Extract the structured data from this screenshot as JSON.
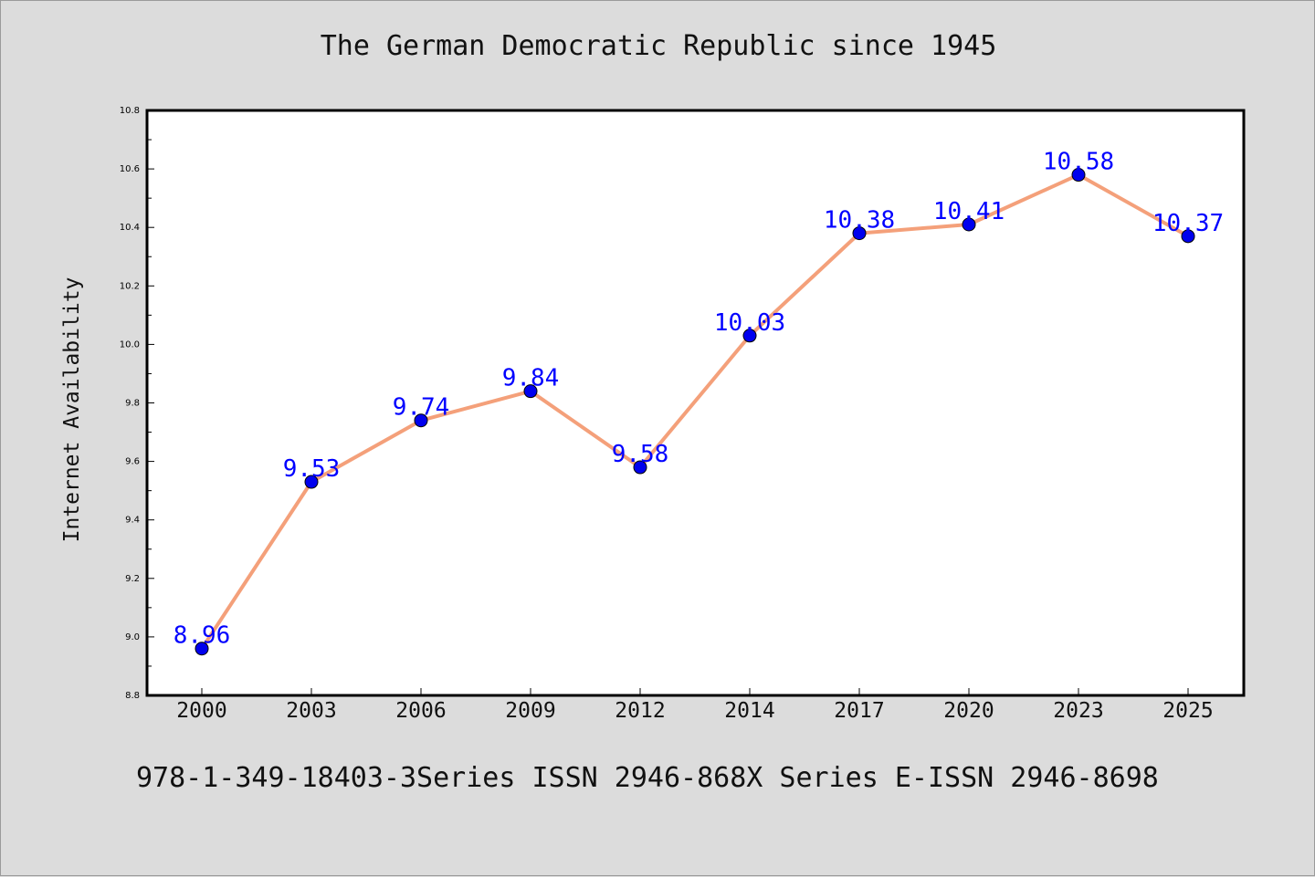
{
  "chart_data": {
    "type": "line",
    "title": "The German Democratic Republic since 1945",
    "xlabel": "",
    "ylabel": "Internet Availability",
    "categories": [
      "2000",
      "2003",
      "2006",
      "2009",
      "2012",
      "2014",
      "2017",
      "2020",
      "2023",
      "2025"
    ],
    "series": [
      {
        "values": [
          8.96,
          9.53,
          9.74,
          9.84,
          9.58,
          10.03,
          10.38,
          10.41,
          10.58,
          10.37
        ],
        "line_color": "#f4a07a",
        "marker_color": "#0000ee",
        "label_color": "#0000ff"
      }
    ],
    "data_labels": [
      "8.96",
      "9.53",
      "9.74",
      "9.84",
      "9.58",
      "10.03",
      "10.38",
      "10.41",
      "10.58",
      "10.37"
    ],
    "ylim": [
      8.8,
      10.8
    ],
    "y_ticks": [
      "8.8",
      "9.0",
      "9.2",
      "9.4",
      "9.6",
      "9.8",
      "10.0",
      "10.2",
      "10.4",
      "10.6",
      "10.8"
    ],
    "grid": false,
    "legend": "none"
  },
  "footer": {
    "text": "978-1-349-18403-3Series ISSN 2946-868X Series E-ISSN 2946-8698"
  },
  "colors": {
    "background": "#dcdcdc",
    "plot_background": "#ffffff"
  }
}
